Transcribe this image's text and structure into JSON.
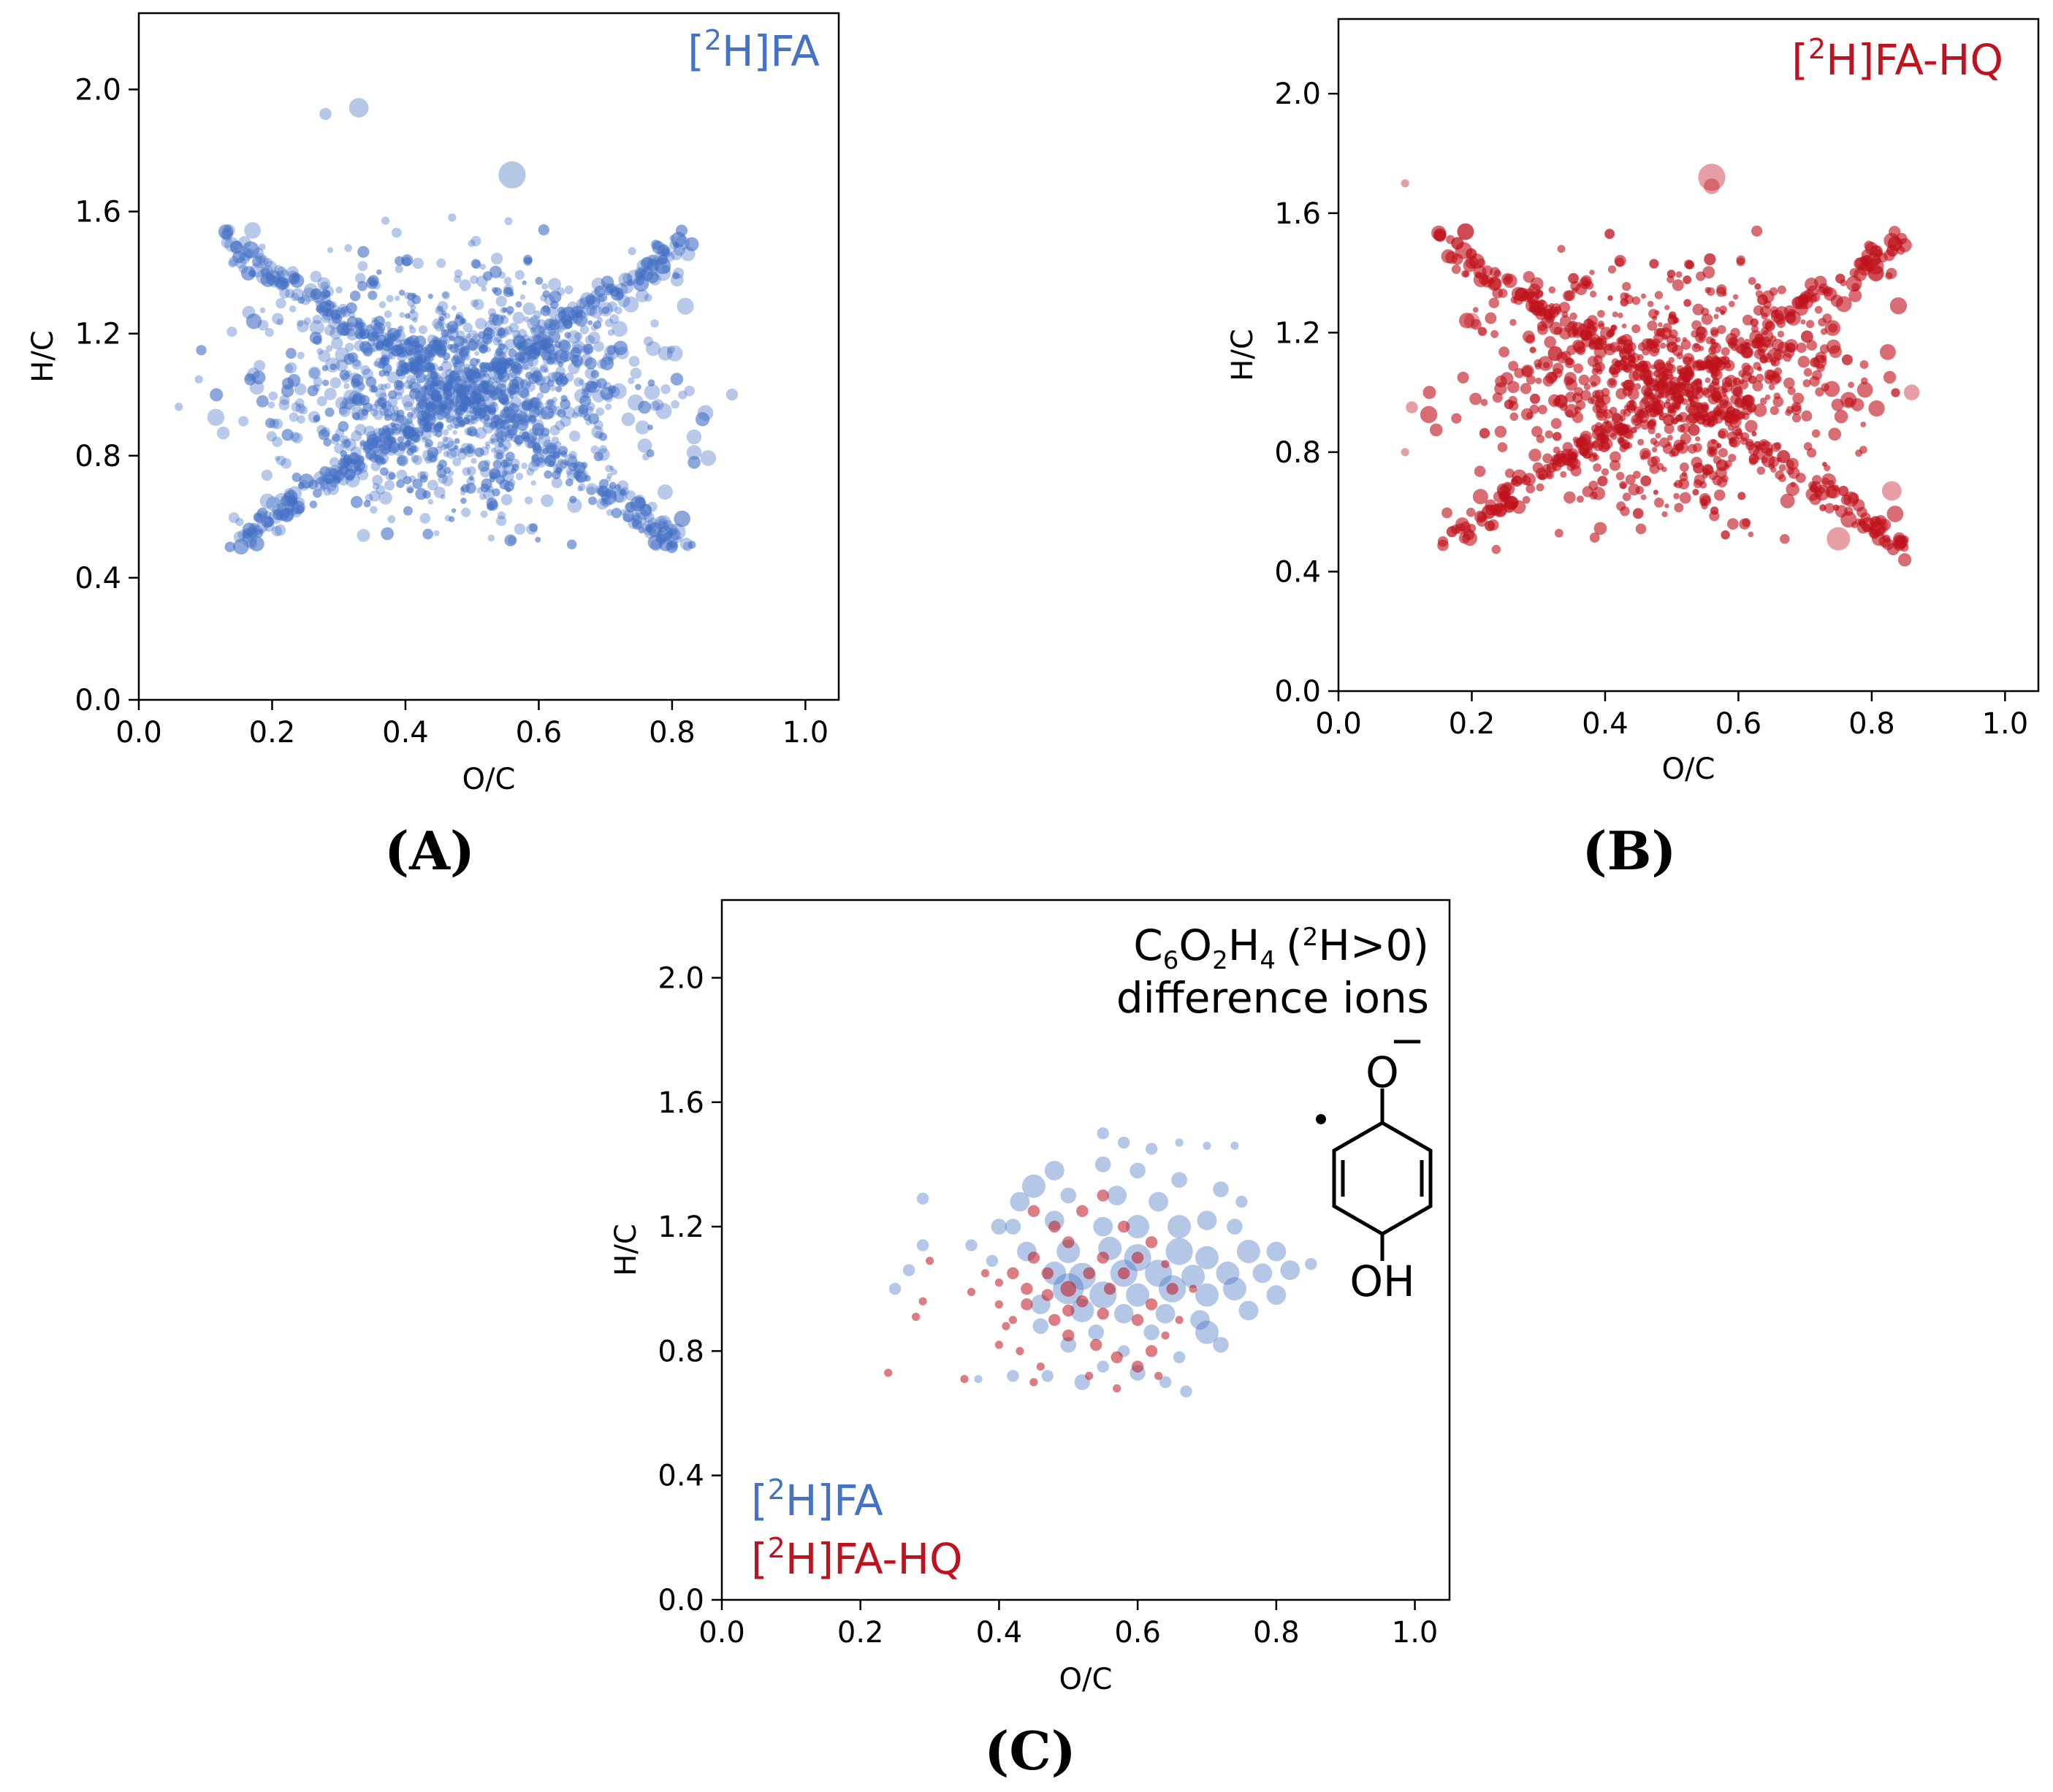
{
  "colors": {
    "fa": "#4472c4",
    "fahq": "#c0121e",
    "axis": "#000000"
  },
  "chart_data": [
    {
      "id": "A",
      "type": "scatter",
      "panel_label": "(A)",
      "xlabel": "O/C",
      "ylabel": "H/C",
      "xlim": [
        0.0,
        1.05
      ],
      "ylim": [
        0.0,
        2.25
      ],
      "xticks": [
        "0.0",
        "0.2",
        "0.4",
        "0.6",
        "0.8",
        "1.0"
      ],
      "yticks": [
        "0.0",
        "0.4",
        "0.8",
        "1.2",
        "1.6",
        "2.0"
      ],
      "annotation": {
        "prefix": "[",
        "sup": "2",
        "suffix": "H]FA"
      },
      "series": [
        {
          "name": "[2H]FA",
          "color": "#4472c4",
          "cloud": {
            "x_center": 0.48,
            "y_center": 1.0,
            "x_range": [
              0.08,
              0.89
            ],
            "y_range": [
              0.5,
              1.58
            ],
            "count": 2600
          },
          "points": [
            [
              0.33,
              1.94,
              4
            ],
            [
              0.28,
              1.92,
              2
            ],
            [
              0.56,
              1.72,
              6
            ],
            [
              0.06,
              0.96,
              1
            ],
            [
              0.09,
              1.05,
              1
            ],
            [
              0.89,
              1.0,
              2
            ],
            [
              0.85,
              0.94,
              3
            ],
            [
              0.47,
              1.58,
              1
            ],
            [
              0.37,
              1.57,
              1
            ],
            [
              0.14,
              1.43,
              1
            ],
            [
              0.74,
              1.47,
              1
            ]
          ]
        }
      ]
    },
    {
      "id": "B",
      "type": "scatter",
      "panel_label": "(B)",
      "xlabel": "O/C",
      "ylabel": "H/C",
      "xlim": [
        0.0,
        1.05
      ],
      "ylim": [
        0.0,
        2.25
      ],
      "xticks": [
        "0.0",
        "0.2",
        "0.4",
        "0.6",
        "0.8",
        "1.0"
      ],
      "yticks": [
        "0.0",
        "0.4",
        "0.8",
        "1.2",
        "1.6",
        "2.0"
      ],
      "annotation": {
        "prefix": "[",
        "sup": "2",
        "suffix": "H]FA-HQ"
      },
      "series": [
        {
          "name": "[2H]FA-HQ",
          "color": "#c0121e",
          "cloud": {
            "x_center": 0.5,
            "y_center": 1.0,
            "x_range": [
              0.1,
              0.86
            ],
            "y_range": [
              0.43,
              1.56
            ],
            "count": 2600
          },
          "points": [
            [
              0.56,
              1.72,
              6
            ],
            [
              0.56,
              1.69,
              3
            ],
            [
              0.1,
              1.7,
              1
            ],
            [
              0.75,
              0.51,
              5
            ],
            [
              0.81,
              0.55,
              4
            ],
            [
              0.83,
              0.67,
              4
            ],
            [
              0.86,
              1.0,
              3
            ],
            [
              0.2,
              1.24,
              3
            ],
            [
              0.11,
              0.95,
              2
            ],
            [
              0.1,
              0.8,
              1
            ]
          ]
        }
      ]
    },
    {
      "id": "C",
      "type": "scatter",
      "panel_label": "(C)",
      "xlabel": "O/C",
      "ylabel": "H/C",
      "xlim": [
        0.0,
        1.05
      ],
      "ylim": [
        0.0,
        2.25
      ],
      "xticks": [
        "0.0",
        "0.2",
        "0.4",
        "0.6",
        "0.8",
        "1.0"
      ],
      "yticks": [
        "0.0",
        "0.4",
        "0.8",
        "1.2",
        "1.6",
        "2.0"
      ],
      "annotation_line1": {
        "c": "C",
        "c_sub": "6",
        "o": "O",
        "o_sub": "2",
        "h": "H",
        "h_sub": "4",
        "paren_open": "(",
        "paren_sup": "2",
        "paren_rest": "H>0)"
      },
      "annotation_line2": "difference ions",
      "legend": [
        {
          "prefix": "[",
          "sup": "2",
          "suffix": "H]FA"
        },
        {
          "prefix": "[",
          "sup": "2",
          "suffix": "H]FA-HQ"
        }
      ],
      "structure_labels": {
        "top": "O",
        "charge": "−",
        "bottom": "OH"
      },
      "series": [
        {
          "name": "[2H]FA",
          "color": "#4472c4",
          "points": [
            [
              0.55,
              1.5,
              2
            ],
            [
              0.58,
              1.47,
              2
            ],
            [
              0.62,
              1.45,
              2
            ],
            [
              0.66,
              1.47,
              1
            ],
            [
              0.7,
              1.46,
              1
            ],
            [
              0.74,
              1.46,
              1
            ],
            [
              0.45,
              1.33,
              5
            ],
            [
              0.48,
              1.38,
              4
            ],
            [
              0.55,
              1.4,
              3
            ],
            [
              0.6,
              1.38,
              3
            ],
            [
              0.66,
              1.35,
              3
            ],
            [
              0.5,
              1.3,
              3
            ],
            [
              0.57,
              1.3,
              4
            ],
            [
              0.63,
              1.28,
              4
            ],
            [
              0.72,
              1.32,
              3
            ],
            [
              0.75,
              1.28,
              2
            ],
            [
              0.43,
              1.28,
              4
            ],
            [
              0.42,
              1.2,
              3
            ],
            [
              0.4,
              1.2,
              3
            ],
            [
              0.48,
              1.22,
              4
            ],
            [
              0.55,
              1.2,
              4
            ],
            [
              0.6,
              1.2,
              5
            ],
            [
              0.66,
              1.2,
              5
            ],
            [
              0.7,
              1.22,
              4
            ],
            [
              0.74,
              1.2,
              3
            ],
            [
              0.44,
              1.12,
              4
            ],
            [
              0.5,
              1.12,
              5
            ],
            [
              0.56,
              1.13,
              5
            ],
            [
              0.6,
              1.1,
              6
            ],
            [
              0.66,
              1.12,
              6
            ],
            [
              0.7,
              1.1,
              5
            ],
            [
              0.76,
              1.12,
              5
            ],
            [
              0.8,
              1.12,
              4
            ],
            [
              0.48,
              1.05,
              5
            ],
            [
              0.52,
              1.04,
              6
            ],
            [
              0.58,
              1.05,
              6
            ],
            [
              0.63,
              1.05,
              6
            ],
            [
              0.68,
              1.04,
              5
            ],
            [
              0.73,
              1.05,
              5
            ],
            [
              0.78,
              1.05,
              4
            ],
            [
              0.82,
              1.06,
              4
            ],
            [
              0.85,
              1.08,
              2
            ],
            [
              0.5,
              1.0,
              7
            ],
            [
              0.55,
              0.98,
              6
            ],
            [
              0.6,
              0.98,
              5
            ],
            [
              0.65,
              1.0,
              6
            ],
            [
              0.7,
              0.98,
              5
            ],
            [
              0.74,
              1.0,
              5
            ],
            [
              0.8,
              0.98,
              4
            ],
            [
              0.46,
              0.95,
              4
            ],
            [
              0.52,
              0.93,
              5
            ],
            [
              0.58,
              0.92,
              4
            ],
            [
              0.64,
              0.92,
              4
            ],
            [
              0.69,
              0.9,
              4
            ],
            [
              0.76,
              0.93,
              4
            ],
            [
              0.46,
              0.88,
              3
            ],
            [
              0.54,
              0.86,
              3
            ],
            [
              0.62,
              0.86,
              3
            ],
            [
              0.7,
              0.86,
              5
            ],
            [
              0.72,
              0.82,
              3
            ],
            [
              0.5,
              0.82,
              3
            ],
            [
              0.58,
              0.8,
              2
            ],
            [
              0.66,
              0.78,
              2
            ],
            [
              0.55,
              0.75,
              2
            ],
            [
              0.6,
              0.73,
              3
            ],
            [
              0.64,
              0.7,
              2
            ],
            [
              0.47,
              0.72,
              2
            ],
            [
              0.52,
              0.7,
              3
            ],
            [
              0.42,
              0.72,
              2
            ],
            [
              0.37,
              0.71,
              1
            ],
            [
              0.67,
              0.67,
              2
            ],
            [
              0.29,
              1.29,
              2
            ],
            [
              0.29,
              1.14,
              2
            ],
            [
              0.27,
              1.06,
              2
            ],
            [
              0.25,
              1.0,
              2
            ],
            [
              0.39,
              1.09,
              2
            ],
            [
              0.36,
              1.14,
              2
            ]
          ]
        },
        {
          "name": "[2H]FA-HQ",
          "color": "#c0121e",
          "points": [
            [
              0.24,
              0.73,
              1
            ],
            [
              0.29,
              0.96,
              1
            ],
            [
              0.28,
              0.91,
              1
            ],
            [
              0.3,
              1.09,
              1
            ],
            [
              0.35,
              0.71,
              1
            ],
            [
              0.38,
              1.05,
              1
            ],
            [
              0.4,
              1.02,
              1
            ],
            [
              0.42,
              0.9,
              1
            ],
            [
              0.4,
              0.82,
              1
            ],
            [
              0.45,
              0.7,
              1
            ],
            [
              0.45,
              1.25,
              2
            ],
            [
              0.48,
              1.2,
              2
            ],
            [
              0.52,
              1.25,
              2
            ],
            [
              0.55,
              1.1,
              2
            ],
            [
              0.58,
              1.05,
              2
            ],
            [
              0.5,
              1.0,
              3
            ],
            [
              0.52,
              0.96,
              2
            ],
            [
              0.55,
              0.92,
              2
            ],
            [
              0.47,
              1.05,
              2
            ],
            [
              0.44,
              0.95,
              2
            ],
            [
              0.42,
              1.05,
              2
            ],
            [
              0.48,
              0.9,
              2
            ],
            [
              0.5,
              0.85,
              2
            ],
            [
              0.54,
              0.82,
              2
            ],
            [
              0.57,
              0.78,
              2
            ],
            [
              0.6,
              0.75,
              2
            ],
            [
              0.62,
              0.8,
              2
            ],
            [
              0.6,
              0.9,
              2
            ],
            [
              0.62,
              0.95,
              2
            ],
            [
              0.65,
              1.0,
              2
            ],
            [
              0.6,
              1.1,
              2
            ],
            [
              0.62,
              1.15,
              2
            ],
            [
              0.58,
              1.2,
              2
            ],
            [
              0.55,
              1.3,
              2
            ],
            [
              0.5,
              1.15,
              2
            ],
            [
              0.45,
              1.1,
              2
            ],
            [
              0.43,
              0.8,
              1
            ],
            [
              0.46,
              0.75,
              1
            ],
            [
              0.53,
              0.72,
              1
            ],
            [
              0.57,
              0.68,
              1
            ],
            [
              0.64,
              0.85,
              1
            ],
            [
              0.66,
              0.9,
              1
            ],
            [
              0.68,
              1.0,
              1
            ],
            [
              0.53,
              1.05,
              2
            ],
            [
              0.47,
              0.98,
              2
            ],
            [
              0.56,
              1.0,
              2
            ],
            [
              0.5,
              0.93,
              2
            ],
            [
              0.44,
              1.0,
              2
            ],
            [
              0.4,
              0.95,
              1
            ],
            [
              0.41,
              0.88,
              1
            ],
            [
              0.36,
              0.99,
              1
            ],
            [
              0.64,
              1.08,
              1
            ],
            [
              0.63,
              0.72,
              1
            ]
          ]
        }
      ]
    }
  ]
}
